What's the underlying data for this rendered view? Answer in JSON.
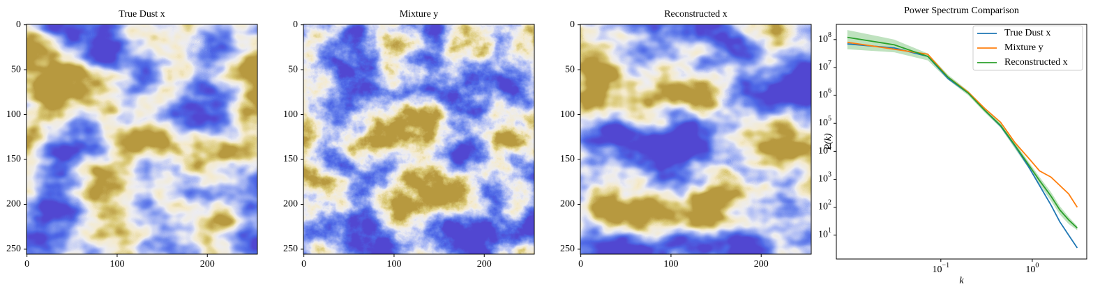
{
  "chart_data": [
    {
      "type": "image",
      "title": "True Dust x",
      "xlim": [
        -0.5,
        255.5
      ],
      "ylim": [
        255.5,
        -0.5
      ],
      "xticks": [
        0,
        100,
        200
      ],
      "yticks": [
        0,
        50,
        100,
        150,
        200,
        250
      ],
      "seed": 3,
      "noise": 4
    },
    {
      "type": "image",
      "title": "Mixture y",
      "xlim": [
        -0.5,
        255.5
      ],
      "ylim": [
        255.5,
        -0.5
      ],
      "xticks": [
        0,
        100,
        200
      ],
      "yticks": [
        0,
        50,
        100,
        150,
        200,
        250
      ],
      "seed": 3,
      "noise": 9
    },
    {
      "type": "image",
      "title": "Reconstructed x",
      "xlim": [
        -0.5,
        255.5
      ],
      "ylim": [
        255.5,
        -0.5
      ],
      "xticks": [
        0,
        100,
        200
      ],
      "yticks": [
        0,
        50,
        100,
        150,
        200,
        250
      ],
      "seed": 11,
      "noise": 4
    },
    {
      "type": "line",
      "title": "Power Spectrum Comparison",
      "xlabel": "k",
      "ylabel": "P(k)",
      "log_x": true,
      "log_y": true,
      "xlim": [
        0.0072,
        3.94
      ],
      "ylim": [
        1.4,
        350000000
      ],
      "xticks": [
        {
          "value": 0.1,
          "label": {
            "base": "10",
            "exp": "−1"
          }
        },
        {
          "value": 1,
          "label": {
            "base": "10",
            "exp": "0"
          }
        }
      ],
      "yticks": [
        {
          "value": 10,
          "label": {
            "base": "10",
            "exp": "1"
          }
        },
        {
          "value": 100,
          "label": {
            "base": "10",
            "exp": "2"
          }
        },
        {
          "value": 1000,
          "label": {
            "base": "10",
            "exp": "3"
          }
        },
        {
          "value": 10000,
          "label": {
            "base": "10",
            "exp": "4"
          }
        },
        {
          "value": 100000,
          "label": {
            "base": "10",
            "exp": "5"
          }
        },
        {
          "value": 1000000,
          "label": {
            "base": "10",
            "exp": "6"
          }
        },
        {
          "value": 10000000,
          "label": {
            "base": "10",
            "exp": "7"
          }
        },
        {
          "value": 100000000,
          "label": {
            "base": "10",
            "exp": "8"
          }
        }
      ],
      "legend": "upper right",
      "x": [
        0.0095,
        0.031,
        0.072,
        0.12,
        0.2,
        0.3,
        0.45,
        0.65,
        0.9,
        1.2,
        1.6,
        2.0,
        2.5,
        3.1
      ],
      "series": [
        {
          "name": "True Dust x",
          "color": "#1f77b4",
          "values": [
            70000000,
            50000000,
            25000000,
            4000000,
            1200000,
            300000,
            80000,
            15000,
            3000,
            600,
            120,
            30,
            10,
            3.5
          ]
        },
        {
          "name": "Mixture y",
          "color": "#ff7f0e",
          "values": [
            80000000,
            45000000,
            30000000,
            4500000,
            1300000,
            350000,
            110000,
            20000,
            6000,
            2000,
            1200,
            600,
            300,
            100
          ]
        },
        {
          "name": "Reconstructed x",
          "color": "#2ca02c",
          "values": [
            120000000,
            65000000,
            25000000,
            4500000,
            1200000,
            300000,
            85000,
            16000,
            3500,
            900,
            250,
            80,
            35,
            18
          ],
          "lower": [
            45000000,
            35000000,
            18000000,
            3600000,
            1000000,
            250000,
            70000,
            12000,
            2600,
            650,
            170,
            55,
            25,
            15
          ],
          "upper": [
            220000000,
            100000000,
            32000000,
            5500000,
            1450000,
            360000,
            100000,
            20000,
            4500,
            1200,
            350,
            110,
            45,
            21
          ]
        }
      ]
    }
  ]
}
